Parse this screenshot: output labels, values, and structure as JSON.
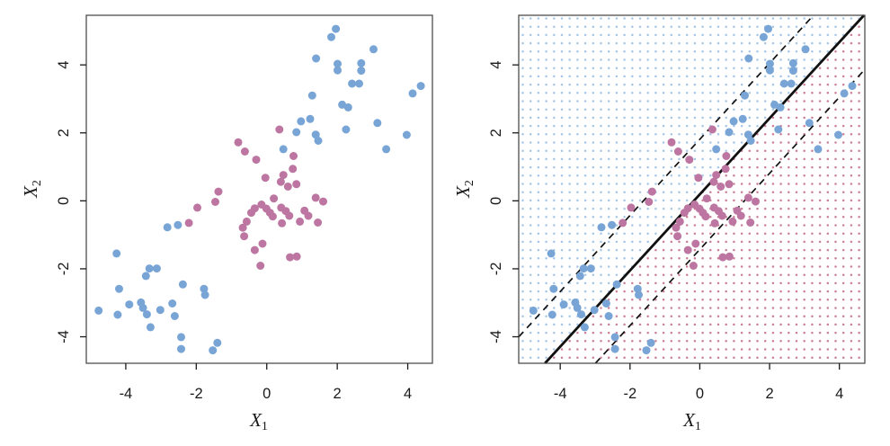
{
  "figure": {
    "kind": "two-panel-scatter",
    "labels": {
      "x_base": "X",
      "x_sub": "1",
      "y_base": "X",
      "y_sub": "2"
    },
    "colors": {
      "class_blue": "#78A5D6",
      "class_pink": "#BC76A1",
      "grid_dot_blue": "#A6C6E8",
      "grid_dot_pink": "#CC7F97",
      "boundary_line": "#111111",
      "box_border": "#4d4d4d",
      "tick_text": "#1a1a1a"
    }
  },
  "chart_data": {
    "type": "scatter",
    "panels": [
      {
        "id": "left",
        "xlabel": "X1",
        "ylabel": "X2",
        "xticks": [
          -4,
          -2,
          0,
          2,
          4
        ],
        "yticks": [
          -4,
          -2,
          0,
          2,
          4
        ],
        "xlim": [
          -5.12,
          4.7
        ],
        "ylim": [
          -4.78,
          5.46
        ],
        "grid": false,
        "lines": [],
        "background_grid": null
      },
      {
        "id": "right",
        "xlabel": "X1",
        "ylabel": "X2",
        "xticks": [
          -4,
          -2,
          0,
          2,
          4
        ],
        "yticks": [
          -4,
          -2,
          0,
          2,
          4
        ],
        "xlim": [
          -5.19,
          4.73
        ],
        "ylim": [
          -4.78,
          5.46
        ],
        "grid": false,
        "lines": [
          {
            "role": "decision-boundary",
            "style": "solid",
            "slope": 1.12,
            "intercept": 0.19
          },
          {
            "role": "upper-margin",
            "style": "dashed",
            "slope": 1.12,
            "intercept": 1.81
          },
          {
            "role": "lower-margin",
            "style": "dashed",
            "slope": 1.12,
            "intercept": -1.43
          }
        ],
        "background_grid": {
          "description": "dotted class-region shading split by decision boundary",
          "blue_region": "above boundary",
          "pink_region": "below boundary"
        }
      }
    ],
    "series": [
      {
        "name": "class-blue",
        "color_key": "class_blue",
        "points": [
          [
            1.96,
            5.06
          ],
          [
            1.83,
            4.82
          ],
          [
            3.03,
            4.46
          ],
          [
            1.4,
            4.19
          ],
          [
            2.01,
            4.03
          ],
          [
            2.68,
            4.05
          ],
          [
            2.01,
            3.84
          ],
          [
            2.68,
            3.83
          ],
          [
            2.42,
            3.45
          ],
          [
            2.62,
            3.45
          ],
          [
            4.14,
            3.16
          ],
          [
            4.37,
            3.38
          ],
          [
            1.29,
            3.1
          ],
          [
            2.14,
            2.83
          ],
          [
            2.31,
            2.75
          ],
          [
            0.97,
            2.34
          ],
          [
            1.23,
            2.41
          ],
          [
            2.25,
            2.1
          ],
          [
            3.14,
            2.29
          ],
          [
            0.84,
            2.02
          ],
          [
            1.39,
            1.95
          ],
          [
            1.46,
            1.77
          ],
          [
            3.97,
            1.94
          ],
          [
            3.39,
            1.52
          ],
          [
            0.47,
            1.52
          ],
          [
            -2.82,
            -0.78
          ],
          [
            -2.52,
            -0.71
          ],
          [
            -4.26,
            -1.55
          ],
          [
            -3.33,
            -1.99
          ],
          [
            -3.12,
            -1.99
          ],
          [
            -3.43,
            -2.21
          ],
          [
            -4.19,
            -2.59
          ],
          [
            -2.38,
            -2.46
          ],
          [
            -1.78,
            -2.59
          ],
          [
            -1.75,
            -2.77
          ],
          [
            -3.9,
            -3.05
          ],
          [
            -3.57,
            -2.99
          ],
          [
            -3.51,
            -3.15
          ],
          [
            -3.4,
            -3.34
          ],
          [
            -4.77,
            -3.23
          ],
          [
            -4.23,
            -3.35
          ],
          [
            -3.02,
            -3.21
          ],
          [
            -2.68,
            -3.02
          ],
          [
            -2.61,
            -3.39
          ],
          [
            -3.3,
            -3.72
          ],
          [
            -2.43,
            -4.01
          ],
          [
            -2.43,
            -4.36
          ],
          [
            -1.4,
            -4.18
          ],
          [
            -1.53,
            -4.4
          ]
        ]
      },
      {
        "name": "class-pink",
        "color_key": "class_pink",
        "points": [
          [
            0.36,
            2.1
          ],
          [
            -0.81,
            1.72
          ],
          [
            -0.62,
            1.45
          ],
          [
            -0.3,
            1.21
          ],
          [
            0.76,
            1.32
          ],
          [
            0.74,
            0.94
          ],
          [
            -0.04,
            0.68
          ],
          [
            0.47,
            0.76
          ],
          [
            0.4,
            0.56
          ],
          [
            0.6,
            0.42
          ],
          [
            0.84,
            0.49
          ],
          [
            1.39,
            0.09
          ],
          [
            1.6,
            -0.02
          ],
          [
            -1.37,
            0.27
          ],
          [
            -1.46,
            -0.03
          ],
          [
            -1.97,
            -0.2
          ],
          [
            -2.21,
            -0.65
          ],
          [
            0.2,
            0.07
          ],
          [
            -0.15,
            -0.11
          ],
          [
            -0.34,
            -0.22
          ],
          [
            -0.44,
            -0.35
          ],
          [
            -0.01,
            -0.23
          ],
          [
            0.09,
            -0.35
          ],
          [
            0.17,
            -0.46
          ],
          [
            0.41,
            -0.2
          ],
          [
            0.54,
            -0.3
          ],
          [
            0.64,
            -0.44
          ],
          [
            0.43,
            -0.66
          ],
          [
            -0.57,
            -0.61
          ],
          [
            -0.68,
            -0.79
          ],
          [
            1.07,
            -0.29
          ],
          [
            1.18,
            -0.44
          ],
          [
            0.94,
            -0.61
          ],
          [
            1.45,
            -0.64
          ],
          [
            -0.12,
            -1.26
          ],
          [
            -0.34,
            -1.45
          ],
          [
            0.66,
            -1.66
          ],
          [
            0.85,
            -1.64
          ],
          [
            -0.18,
            -1.91
          ],
          [
            -0.64,
            -1.04
          ]
        ]
      }
    ]
  }
}
